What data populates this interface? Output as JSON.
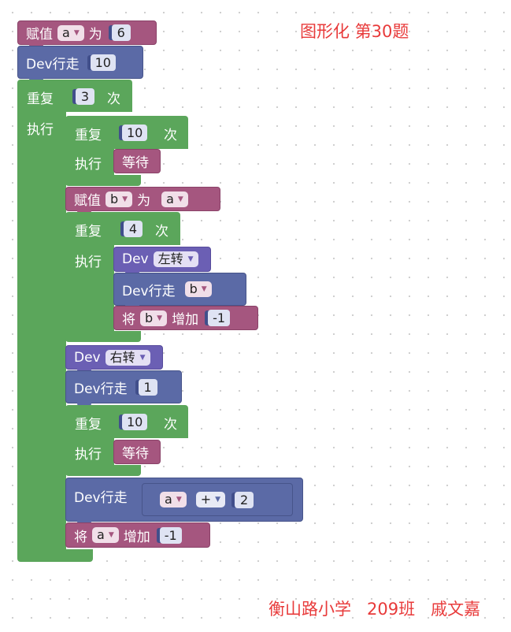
{
  "title": "图形化 第30题",
  "footer": "衡山路小学   209班   戚文嘉",
  "blocks": {
    "b1": {
      "assign": "赋值",
      "var": "a",
      "to": "为",
      "value": "6"
    },
    "b2": {
      "label": "Dev行走",
      "value": "10"
    },
    "rep1": {
      "label": "重复",
      "count": "3",
      "times": "次",
      "do": "执行"
    },
    "rep2": {
      "label": "重复",
      "count": "10",
      "times": "次",
      "do": "执行",
      "body": "等待"
    },
    "b3": {
      "assign": "赋值",
      "var": "b",
      "to": "为",
      "value_var": "a"
    },
    "rep3": {
      "label": "重复",
      "count": "4",
      "times": "次",
      "do": "执行"
    },
    "turn1": {
      "dev": "Dev",
      "dir": "左转"
    },
    "walk_b": {
      "label": "Dev行走",
      "var": "b"
    },
    "inc_b": {
      "op": "将",
      "var": "b",
      "add": "增加",
      "value": "-1"
    },
    "turn2": {
      "dev": "Dev",
      "dir": "右转"
    },
    "walk1": {
      "label": "Dev行走",
      "value": "1"
    },
    "rep4": {
      "label": "重复",
      "count": "10",
      "times": "次",
      "do": "执行",
      "body": "等待"
    },
    "walk_expr": {
      "label": "Dev行走",
      "var": "a",
      "operator": "+",
      "value": "2"
    },
    "inc_a": {
      "op": "将",
      "var": "a",
      "add": "增加",
      "value": "-1"
    }
  }
}
